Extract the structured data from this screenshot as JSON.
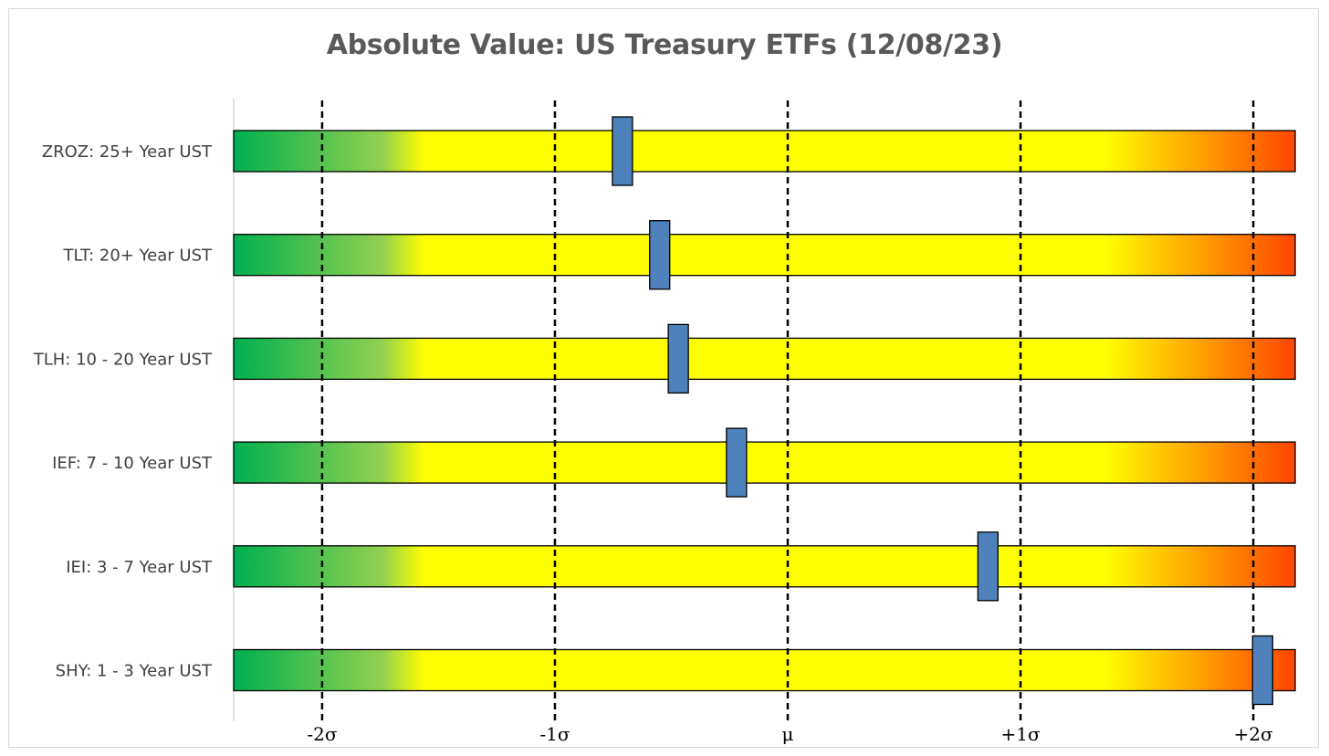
{
  "chart_data": {
    "type": "bar",
    "title": "Absolute Value: US Treasury ETFs (12/08/23)",
    "xlabel": "",
    "ylabel": "",
    "xlim": [
      -2.38,
      2.18
    ],
    "x_ticks": [
      {
        "value": -2,
        "label": "-2σ"
      },
      {
        "value": -1,
        "label": "-1σ"
      },
      {
        "value": 0,
        "label": "μ"
      },
      {
        "value": 1,
        "label": "+1σ"
      },
      {
        "value": 2,
        "label": "+2σ"
      }
    ],
    "categories": [
      "ZROZ: 25+ Year UST",
      "TLT: 20+ Year UST",
      "TLH: 10 - 20 Year UST",
      "IEF: 7 - 10 Year UST",
      "IEI: 3 - 7 Year UST",
      "SHY: 1 - 3 Year UST"
    ],
    "values": [
      -0.71,
      -0.55,
      -0.47,
      -0.22,
      0.86,
      2.04
    ],
    "grid": false,
    "legend": "none",
    "gradient_colors": [
      "#00b050",
      "#92d050",
      "#ffff00",
      "#ffff00",
      "#ffc000",
      "#ff4500"
    ],
    "marker_color": "#4f81bd"
  }
}
